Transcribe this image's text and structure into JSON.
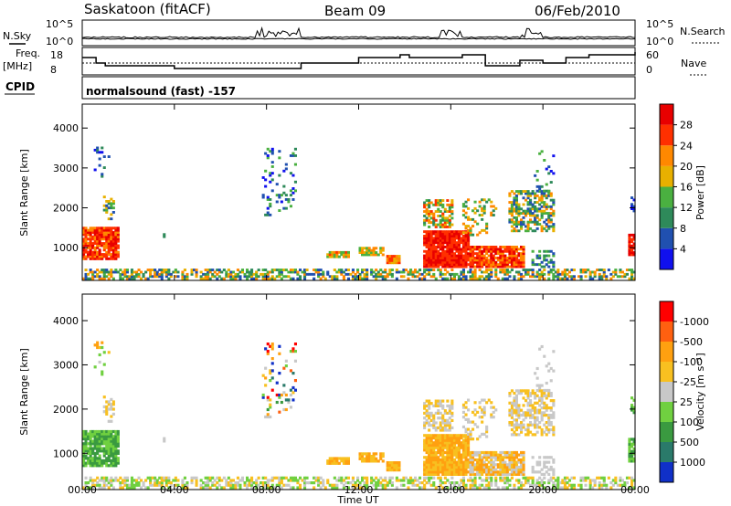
{
  "header": {
    "station": "Saskatoon (fitACF)",
    "beam": "Beam 09",
    "date": "06/Feb/2010"
  },
  "left_labels": {
    "nsky": "N.Sky",
    "freq_line1": "Freq.",
    "freq_line2": "[MHz]",
    "cpid": "CPID"
  },
  "right_labels": {
    "nsearch": "N.Search",
    "nave": "Nave"
  },
  "cpid_text": "normalsound (fast) -157",
  "chart_data": [
    {
      "type": "line",
      "name": "nsky-nsearch-panel",
      "y_ticks_left": [
        "10^5",
        "10^0"
      ],
      "y_ticks_right": [
        "10^5",
        "10^0"
      ]
    },
    {
      "type": "line",
      "name": "freq-nave-panel",
      "y_ticks_left": [
        "18",
        "8"
      ],
      "y_ticks_right": [
        "60",
        "0"
      ],
      "freq_x": [
        0,
        0.6,
        1.0,
        2.5,
        4.0,
        8.0,
        9.5,
        12.0,
        13.8,
        14.2,
        15.0,
        16.5,
        17.5,
        19.0,
        20.0,
        21.0,
        22.0,
        24.0
      ],
      "freq_y": [
        15,
        13,
        12,
        12,
        11,
        11,
        13,
        15,
        16,
        15,
        15,
        16,
        12,
        14,
        13,
        15,
        16,
        17
      ]
    },
    {
      "type": "heatmap",
      "name": "power",
      "xlabel": "",
      "ylabel": "Slant Range [km]",
      "xlim": [
        0,
        24
      ],
      "ylim": [
        180,
        4600
      ],
      "y_ticks": [
        1000,
        2000,
        3000,
        4000
      ],
      "colorbar": {
        "label": "Power [dB]",
        "ticks": [
          "4",
          "8",
          "12",
          "16",
          "20",
          "24",
          "28"
        ],
        "colors": [
          "#1010ee",
          "#2050b0",
          "#2e8a5a",
          "#4ab040",
          "#e8b000",
          "#ff8800",
          "#ff3000",
          "#e80000"
        ]
      }
    },
    {
      "type": "heatmap",
      "name": "velocity",
      "xlabel": "Time UT",
      "ylabel": "Slant Range [km]",
      "xlim": [
        0,
        24
      ],
      "ylim": [
        180,
        4600
      ],
      "y_ticks": [
        1000,
        2000,
        3000,
        4000
      ],
      "x_ticks": [
        "00:00",
        "04:00",
        "08:00",
        "12:00",
        "16:00",
        "20:00",
        "00:00"
      ],
      "colorbar": {
        "label": "Velocity [m s⁻¹]",
        "ticks": [
          "1000",
          "500",
          "100",
          "25",
          "-25",
          "-100",
          "-500",
          "-1000"
        ],
        "colors": [
          "#1030c8",
          "#2a7a6a",
          "#3a9a40",
          "#70d040",
          "#c8c8c8",
          "#f8c020",
          "#ffa010",
          "#ff6010",
          "#ff0000"
        ]
      }
    }
  ]
}
